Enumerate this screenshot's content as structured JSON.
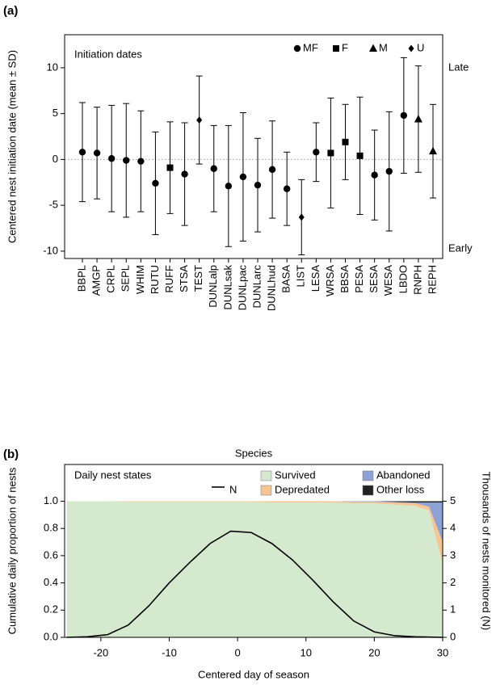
{
  "chart_data": [
    {
      "type": "errorbar",
      "panel_label": "(a)",
      "title": "Initiation dates",
      "annotations": [
        "Late",
        "Early"
      ],
      "ylabel": "Centered nest initiation date (mean ± SD)",
      "xlabel": "Species",
      "ylim": [
        -10.8,
        13.6
      ],
      "yticks": [
        -10,
        -5,
        0,
        5,
        10
      ],
      "reference_line": 0,
      "categories": [
        "BBPL",
        "AMGP",
        "CRPL",
        "SEPL",
        "WHIM",
        "RUTU",
        "RUFF",
        "STSA",
        "TEST",
        "DUNLalp",
        "DUNLsak",
        "DUNLpac",
        "DUNLarc",
        "DUNLhud",
        "BASA",
        "LIST",
        "LESA",
        "WRSA",
        "BBSA",
        "PESA",
        "SESA",
        "WESA",
        "LBDO",
        "RNPH",
        "REPH"
      ],
      "series": [
        {
          "name": "MF",
          "marker": "circle",
          "color": "#000000",
          "values": [
            0.8,
            0.7,
            0.1,
            -0.1,
            -0.2,
            -2.6,
            null,
            -1.6,
            null,
            -1.0,
            -2.9,
            -1.9,
            -2.8,
            -1.1,
            -3.2,
            null,
            0.8,
            null,
            null,
            null,
            -1.7,
            -1.3,
            4.8,
            null,
            null
          ],
          "errors": [
            5.4,
            5.0,
            5.8,
            6.2,
            5.5,
            5.6,
            null,
            5.6,
            null,
            4.7,
            6.6,
            7.0,
            5.1,
            5.3,
            4.0,
            null,
            3.2,
            null,
            null,
            null,
            4.9,
            6.5,
            6.3,
            null,
            null
          ]
        },
        {
          "name": "F",
          "marker": "square",
          "color": "#000000",
          "values": [
            null,
            null,
            null,
            null,
            null,
            null,
            -0.9,
            null,
            null,
            null,
            null,
            null,
            null,
            null,
            null,
            null,
            null,
            0.7,
            1.9,
            0.4,
            null,
            null,
            null,
            null,
            null
          ],
          "errors": [
            null,
            null,
            null,
            null,
            null,
            null,
            5.0,
            null,
            null,
            null,
            null,
            null,
            null,
            null,
            null,
            null,
            null,
            6.0,
            4.1,
            6.4,
            null,
            null,
            null,
            null,
            null
          ]
        },
        {
          "name": "M",
          "marker": "triangle",
          "color": "#000000",
          "values": [
            null,
            null,
            null,
            null,
            null,
            null,
            null,
            null,
            null,
            null,
            null,
            null,
            null,
            null,
            null,
            null,
            null,
            null,
            null,
            null,
            null,
            null,
            null,
            4.4,
            0.9
          ],
          "errors": [
            null,
            null,
            null,
            null,
            null,
            null,
            null,
            null,
            null,
            null,
            null,
            null,
            null,
            null,
            null,
            null,
            null,
            null,
            null,
            null,
            null,
            null,
            null,
            5.8,
            5.1
          ]
        },
        {
          "name": "U",
          "marker": "diamond",
          "color": "#000000",
          "values": [
            null,
            null,
            null,
            null,
            null,
            null,
            null,
            null,
            4.3,
            null,
            null,
            null,
            null,
            null,
            null,
            -6.3,
            null,
            null,
            null,
            null,
            null,
            null,
            null,
            null,
            null
          ],
          "errors": [
            null,
            null,
            null,
            null,
            null,
            null,
            null,
            null,
            4.8,
            null,
            null,
            null,
            null,
            null,
            null,
            4.1,
            null,
            null,
            null,
            null,
            null,
            null,
            null,
            null,
            null
          ]
        }
      ]
    },
    {
      "type": "area",
      "stacked": true,
      "panel_label": "(b)",
      "legend_title": "Daily nest states",
      "ylabel": "Cumulative daily proportion of nests",
      "y2label": "Thousands of nests monitored (N)",
      "xlabel": "Centered day of season",
      "xlim": [
        -25.3,
        30
      ],
      "xticks": [
        -20,
        -10,
        0,
        10,
        20,
        30
      ],
      "ylim": [
        0,
        1.27
      ],
      "yticks": [
        {
          "value": 0,
          "label": "0.0"
        },
        0.2,
        0.4,
        0.6,
        0.8,
        {
          "value": 1,
          "label": "1.0"
        }
      ],
      "y2lim": [
        0,
        6.35
      ],
      "y2ticks": [
        0,
        1,
        2,
        3,
        4,
        5
      ],
      "x": [
        -25,
        -22,
        -19,
        -16,
        -13,
        -10,
        -7,
        -4,
        -1,
        2,
        5,
        8,
        11,
        14,
        17,
        20,
        23,
        26,
        28,
        30
      ],
      "series": [
        {
          "name": "Survived",
          "color": "#d5e9cf",
          "values": [
            1,
            1,
            1,
            0.995,
            0.995,
            0.995,
            0.995,
            0.995,
            0.995,
            0.995,
            0.99,
            0.99,
            0.99,
            0.99,
            0.985,
            0.985,
            0.975,
            0.965,
            0.93,
            0.54
          ]
        },
        {
          "name": "Depredated",
          "color": "#f6c592",
          "values": [
            0,
            0,
            0,
            0.005,
            0.005,
            0.005,
            0.005,
            0.005,
            0.005,
            0.005,
            0.01,
            0.01,
            0.01,
            0.01,
            0.01,
            0.01,
            0.015,
            0.02,
            0.03,
            0.16
          ]
        },
        {
          "name": "Abandoned",
          "color": "#8fa2d6",
          "values": [
            0,
            0,
            0,
            0,
            0,
            0,
            0,
            0,
            0,
            0,
            0,
            0,
            0,
            0,
            0.005,
            0.005,
            0.005,
            0.005,
            0.03,
            0.29
          ]
        },
        {
          "name": "Other loss",
          "color": "#222222",
          "values": [
            0,
            0,
            0,
            0,
            0,
            0,
            0,
            0,
            0,
            0,
            0,
            0,
            0,
            0,
            0,
            0,
            0.005,
            0.01,
            0.01,
            0.01
          ]
        },
        {
          "name": "N",
          "type": "line",
          "axis": "y2",
          "color": "#000000",
          "values": [
            0,
            0.02,
            0.1,
            0.45,
            1.15,
            2.0,
            2.75,
            3.45,
            3.9,
            3.85,
            3.45,
            2.85,
            2.1,
            1.3,
            0.6,
            0.2,
            0.06,
            0.02,
            0.01,
            0
          ]
        }
      ]
    }
  ]
}
